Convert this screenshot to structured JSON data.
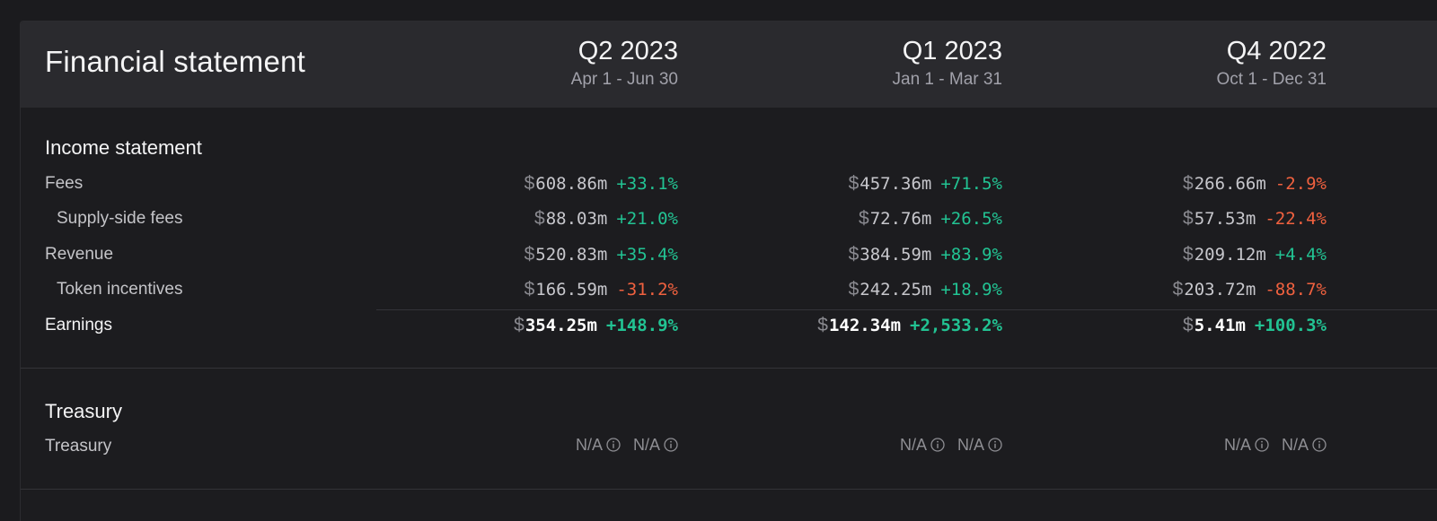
{
  "header": {
    "title": "Financial statement",
    "periods": [
      {
        "quarter": "Q2 2023",
        "range": "Apr 1 - Jun 30"
      },
      {
        "quarter": "Q1 2023",
        "range": "Jan 1 - Mar 31"
      },
      {
        "quarter": "Q4 2022",
        "range": "Oct 1 - Dec 31"
      }
    ]
  },
  "income": {
    "title": "Income statement",
    "currency_symbol": "$",
    "rows": [
      {
        "label": "Fees",
        "values": [
          {
            "amount": "608.86m",
            "change": "+33.1%",
            "trend": "pos"
          },
          {
            "amount": "457.36m",
            "change": "+71.5%",
            "trend": "pos"
          },
          {
            "amount": "266.66m",
            "change": "-2.9%",
            "trend": "neg"
          }
        ]
      },
      {
        "label": "Supply-side fees",
        "values": [
          {
            "amount": "88.03m",
            "change": "+21.0%",
            "trend": "pos"
          },
          {
            "amount": "72.76m",
            "change": "+26.5%",
            "trend": "pos"
          },
          {
            "amount": "57.53m",
            "change": "-22.4%",
            "trend": "neg"
          }
        ]
      },
      {
        "label": "Revenue",
        "values": [
          {
            "amount": "520.83m",
            "change": "+35.4%",
            "trend": "pos"
          },
          {
            "amount": "384.59m",
            "change": "+83.9%",
            "trend": "pos"
          },
          {
            "amount": "209.12m",
            "change": "+4.4%",
            "trend": "pos"
          }
        ]
      },
      {
        "label": "Token incentives",
        "values": [
          {
            "amount": "166.59m",
            "change": "-31.2%",
            "trend": "neg"
          },
          {
            "amount": "242.25m",
            "change": "+18.9%",
            "trend": "pos"
          },
          {
            "amount": "203.72m",
            "change": "-88.7%",
            "trend": "neg"
          }
        ]
      },
      {
        "label": "Earnings",
        "values": [
          {
            "amount": "354.25m",
            "change": "+148.9%",
            "trend": "pos"
          },
          {
            "amount": "142.34m",
            "change": "+2,533.2%",
            "trend": "pos"
          },
          {
            "amount": "5.41m",
            "change": "+100.3%",
            "trend": "pos"
          }
        ]
      }
    ]
  },
  "treasury": {
    "title": "Treasury",
    "row_label": "Treasury",
    "na_text": "N/A"
  },
  "colors": {
    "positive": "#22c393",
    "negative": "#f0613f",
    "header_bg": "#2a2a2e",
    "page_bg": "#1c1c1f"
  },
  "icons": {
    "info": "info-icon"
  }
}
